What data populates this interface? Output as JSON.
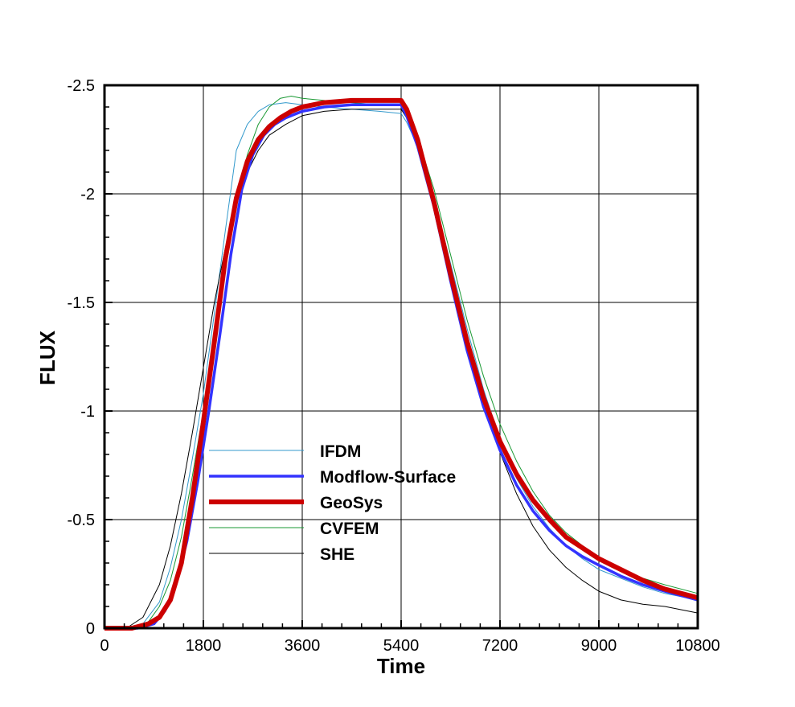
{
  "chart_data": {
    "type": "line",
    "title": "",
    "xlabel": "Time",
    "ylabel": "FLUX",
    "xlim": [
      0,
      10800
    ],
    "ylim": [
      0,
      -2.5
    ],
    "y_reversed": true,
    "grid": true,
    "legend_position": "lower-left",
    "x_ticks": [
      0,
      1800,
      3600,
      5400,
      7200,
      9000,
      10800
    ],
    "x_tick_labels": [
      "0",
      "1800",
      "3600",
      "5400",
      "7200",
      "9000",
      "10800"
    ],
    "y_ticks": [
      0,
      -0.5,
      -1,
      -1.5,
      -2,
      -2.5
    ],
    "y_tick_labels": [
      "0",
      "-0.5",
      "-1",
      "-1.5",
      "-2",
      "-2.5"
    ],
    "series": [
      {
        "name": "IFDM",
        "color": "#3399cc",
        "x": [
          0,
          400,
          700,
          1000,
          1200,
          1400,
          1600,
          1800,
          2000,
          2200,
          2400,
          2600,
          2800,
          3000,
          3300,
          3600,
          4000,
          4500,
          5000,
          5400,
          5500,
          5700,
          6000,
          6300,
          6600,
          6900,
          7200,
          7500,
          7800,
          8100,
          8400,
          8700,
          9000,
          9400,
          9800,
          10200,
          10800
        ],
        "y": [
          0,
          0,
          -0.02,
          -0.12,
          -0.28,
          -0.5,
          -0.78,
          -1.08,
          -1.45,
          -1.83,
          -2.2,
          -2.32,
          -2.38,
          -2.41,
          -2.42,
          -2.41,
          -2.4,
          -2.39,
          -2.38,
          -2.37,
          -2.33,
          -2.22,
          -1.98,
          -1.68,
          -1.38,
          -1.1,
          -0.87,
          -0.69,
          -0.56,
          -0.46,
          -0.38,
          -0.32,
          -0.27,
          -0.23,
          -0.19,
          -0.16,
          -0.13
        ]
      },
      {
        "name": "Modflow-Surface",
        "color": "#3333ff",
        "x": [
          0,
          600,
          900,
          1100,
          1300,
          1500,
          1700,
          1900,
          2100,
          2300,
          2500,
          2700,
          2900,
          3100,
          3300,
          3600,
          4000,
          4500,
          5000,
          5300,
          5400,
          5500,
          5700,
          6000,
          6300,
          6600,
          6900,
          7200,
          7500,
          7800,
          8100,
          8400,
          8700,
          9000,
          9400,
          9800,
          10200,
          10800
        ],
        "y": [
          0,
          0,
          -0.02,
          -0.08,
          -0.2,
          -0.4,
          -0.68,
          -1.0,
          -1.35,
          -1.72,
          -2.02,
          -2.18,
          -2.27,
          -2.32,
          -2.35,
          -2.38,
          -2.4,
          -2.41,
          -2.41,
          -2.41,
          -2.41,
          -2.36,
          -2.22,
          -1.94,
          -1.6,
          -1.28,
          -1.02,
          -0.82,
          -0.66,
          -0.54,
          -0.45,
          -0.38,
          -0.33,
          -0.29,
          -0.24,
          -0.2,
          -0.17,
          -0.13
        ]
      },
      {
        "name": "GeoSys",
        "color": "#cc0000",
        "x": [
          0,
          500,
          800,
          1000,
          1200,
          1400,
          1600,
          1800,
          2000,
          2200,
          2400,
          2600,
          2800,
          3000,
          3200,
          3400,
          3600,
          4000,
          4500,
          5000,
          5400,
          5500,
          5700,
          6000,
          6300,
          6600,
          6900,
          7200,
          7500,
          7800,
          8100,
          8400,
          8700,
          9000,
          9400,
          9800,
          10200,
          10800
        ],
        "y": [
          0,
          0,
          -0.02,
          -0.05,
          -0.13,
          -0.3,
          -0.6,
          -0.95,
          -1.32,
          -1.7,
          -1.98,
          -2.15,
          -2.25,
          -2.31,
          -2.35,
          -2.38,
          -2.4,
          -2.42,
          -2.43,
          -2.43,
          -2.43,
          -2.39,
          -2.25,
          -1.96,
          -1.63,
          -1.32,
          -1.06,
          -0.86,
          -0.71,
          -0.59,
          -0.5,
          -0.42,
          -0.37,
          -0.32,
          -0.27,
          -0.22,
          -0.18,
          -0.14
        ]
      },
      {
        "name": "CVFEM",
        "color": "#1a9933",
        "x": [
          0,
          500,
          800,
          1000,
          1200,
          1400,
          1600,
          1800,
          2000,
          2200,
          2400,
          2600,
          2800,
          3000,
          3200,
          3400,
          3600,
          4000,
          4500,
          5000,
          5400,
          5500,
          5700,
          6000,
          6300,
          6600,
          6900,
          7200,
          7500,
          7800,
          8100,
          8400,
          8700,
          9000,
          9400,
          9800,
          10200,
          10800
        ],
        "y": [
          0,
          0,
          -0.03,
          -0.1,
          -0.22,
          -0.42,
          -0.7,
          -1.0,
          -1.32,
          -1.65,
          -1.97,
          -2.18,
          -2.32,
          -2.4,
          -2.44,
          -2.45,
          -2.44,
          -2.43,
          -2.42,
          -2.41,
          -2.41,
          -2.38,
          -2.26,
          -2.02,
          -1.72,
          -1.42,
          -1.16,
          -0.94,
          -0.77,
          -0.63,
          -0.52,
          -0.44,
          -0.38,
          -0.32,
          -0.27,
          -0.23,
          -0.2,
          -0.16
        ]
      },
      {
        "name": "SHE",
        "color": "#000000",
        "x": [
          0,
          400,
          700,
          1000,
          1200,
          1400,
          1600,
          1800,
          2000,
          2200,
          2400,
          2600,
          2800,
          3000,
          3300,
          3600,
          4000,
          4500,
          5000,
          5400,
          5500,
          5700,
          6000,
          6300,
          6600,
          6900,
          7200,
          7500,
          7800,
          8100,
          8400,
          8700,
          9000,
          9400,
          9800,
          10200,
          10800
        ],
        "y": [
          0,
          0,
          -0.05,
          -0.2,
          -0.38,
          -0.62,
          -0.9,
          -1.2,
          -1.5,
          -1.75,
          -1.95,
          -2.1,
          -2.2,
          -2.27,
          -2.32,
          -2.36,
          -2.38,
          -2.39,
          -2.39,
          -2.39,
          -2.35,
          -2.24,
          -1.98,
          -1.66,
          -1.34,
          -1.05,
          -0.81,
          -0.62,
          -0.47,
          -0.36,
          -0.28,
          -0.22,
          -0.17,
          -0.13,
          -0.11,
          -0.1,
          -0.07
        ]
      }
    ]
  }
}
